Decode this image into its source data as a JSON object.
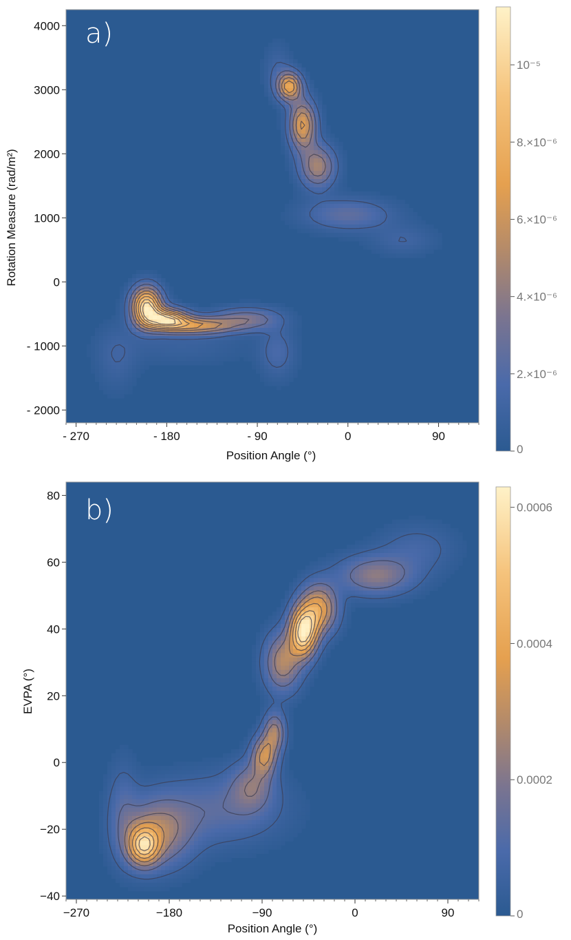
{
  "chart_data": [
    {
      "type": "heatmap",
      "title": "",
      "panel_label": "a)",
      "xlabel": "Position Angle (°)",
      "ylabel": "Rotation Measure (rad/m²)",
      "xlim": [
        -280,
        130
      ],
      "ylim": [
        -2200,
        4250
      ],
      "x_ticks": [
        {
          "value": -270,
          "label": "- 270"
        },
        {
          "value": -180,
          "label": "- 180"
        },
        {
          "value": -90,
          "label": "- 90"
        },
        {
          "value": 0,
          "label": "0"
        },
        {
          "value": 90,
          "label": "90"
        }
      ],
      "y_ticks": [
        {
          "value": 4000,
          "label": "4000"
        },
        {
          "value": 3000,
          "label": "3000"
        },
        {
          "value": 2000,
          "label": "2000"
        },
        {
          "value": 1000,
          "label": "1000"
        },
        {
          "value": 0,
          "label": "0"
        },
        {
          "value": -1000,
          "label": "- 1000"
        },
        {
          "value": -2000,
          "label": "- 2000"
        }
      ],
      "colorbar": {
        "min": 0,
        "max": 1.15e-05,
        "ticks": [
          {
            "value": 0,
            "label": "0"
          },
          {
            "value": 2e-06,
            "label": "2.×10⁻⁶"
          },
          {
            "value": 4e-06,
            "label": "4.×10⁻⁶"
          },
          {
            "value": 6e-06,
            "label": "6.×10⁻⁶"
          },
          {
            "value": 8e-06,
            "label": "8.×10⁻⁶"
          },
          {
            "value": 1e-05,
            "label": "10⁻⁵"
          }
        ]
      },
      "contour_levels": [
        0.1,
        0.22,
        0.34,
        0.46,
        0.58,
        0.7,
        0.82,
        0.92
      ],
      "blobs": [
        {
          "x": -200,
          "y": -380,
          "sx": 10,
          "sy": 200,
          "amp": 0.95
        },
        {
          "x": -180,
          "y": -580,
          "sx": 14,
          "sy": 110,
          "amp": 0.8
        },
        {
          "x": -150,
          "y": -680,
          "sx": 25,
          "sy": 90,
          "amp": 0.55
        },
        {
          "x": -100,
          "y": -580,
          "sx": 22,
          "sy": 120,
          "amp": 0.3
        },
        {
          "x": -70,
          "y": -1100,
          "sx": 12,
          "sy": 280,
          "amp": 0.14
        },
        {
          "x": -230,
          "y": -1200,
          "sx": 14,
          "sy": 360,
          "amp": 0.09
        },
        {
          "x": -165,
          "y": -1000,
          "sx": 45,
          "sy": 200,
          "amp": 0.07
        },
        {
          "x": -58,
          "y": 3050,
          "sx": 8,
          "sy": 150,
          "amp": 0.65
        },
        {
          "x": -45,
          "y": 2450,
          "sx": 9,
          "sy": 260,
          "amp": 0.6
        },
        {
          "x": -30,
          "y": 1800,
          "sx": 12,
          "sy": 230,
          "amp": 0.42
        },
        {
          "x": 0,
          "y": 1050,
          "sx": 30,
          "sy": 170,
          "amp": 0.22
        },
        {
          "x": 55,
          "y": 650,
          "sx": 22,
          "sy": 160,
          "amp": 0.1
        },
        {
          "x": -70,
          "y": 3300,
          "sx": 9,
          "sy": 280,
          "amp": 0.1
        }
      ]
    },
    {
      "type": "heatmap",
      "title": "",
      "panel_label": "b)",
      "xlabel": "Position Angle (°)",
      "ylabel": "EVPA (°)",
      "xlim": [
        -280,
        120
      ],
      "ylim": [
        -41,
        84
      ],
      "x_ticks": [
        {
          "value": -270,
          "label": "−270"
        },
        {
          "value": -180,
          "label": "−180"
        },
        {
          "value": -90,
          "label": "−90"
        },
        {
          "value": 0,
          "label": "0"
        },
        {
          "value": 90,
          "label": "90"
        }
      ],
      "y_ticks": [
        {
          "value": 80,
          "label": "80"
        },
        {
          "value": 60,
          "label": "60"
        },
        {
          "value": 40,
          "label": "40"
        },
        {
          "value": 20,
          "label": "20"
        },
        {
          "value": 0,
          "label": "0"
        },
        {
          "value": -20,
          "label": "−20"
        },
        {
          "value": -40,
          "label": "−40"
        }
      ],
      "colorbar": {
        "min": 0,
        "max": 0.00063,
        "ticks": [
          {
            "value": 0,
            "label": "0"
          },
          {
            "value": 0.0002,
            "label": "0.0002"
          },
          {
            "value": 0.0004,
            "label": "0.0004"
          },
          {
            "value": 0.0006,
            "label": "0.0006"
          }
        ]
      },
      "contour_levels": [
        0.08,
        0.22,
        0.36,
        0.5,
        0.64,
        0.78,
        0.9
      ],
      "blobs": [
        {
          "x": -205,
          "y": -25,
          "sx": 10,
          "sy": 4,
          "amp": 0.7
        },
        {
          "x": -190,
          "y": -21,
          "sx": 22,
          "sy": 7,
          "amp": 0.4
        },
        {
          "x": -130,
          "y": -14,
          "sx": 40,
          "sy": 7,
          "amp": 0.2
        },
        {
          "x": -88,
          "y": 2,
          "sx": 8,
          "sy": 4,
          "amp": 0.5
        },
        {
          "x": -78,
          "y": 9,
          "sx": 7,
          "sy": 4,
          "amp": 0.42
        },
        {
          "x": -100,
          "y": -7,
          "sx": 14,
          "sy": 5,
          "amp": 0.28
        },
        {
          "x": -225,
          "y": -15,
          "sx": 10,
          "sy": 10,
          "amp": 0.15
        },
        {
          "x": -50,
          "y": 39,
          "sx": 9,
          "sy": 5,
          "amp": 0.95
        },
        {
          "x": -35,
          "y": 46,
          "sx": 12,
          "sy": 5,
          "amp": 0.6
        },
        {
          "x": -70,
          "y": 30,
          "sx": 12,
          "sy": 6,
          "amp": 0.45
        },
        {
          "x": 20,
          "y": 56,
          "sx": 25,
          "sy": 4,
          "amp": 0.35
        },
        {
          "x": 60,
          "y": 64,
          "sx": 25,
          "sy": 5,
          "amp": 0.12
        }
      ]
    }
  ]
}
